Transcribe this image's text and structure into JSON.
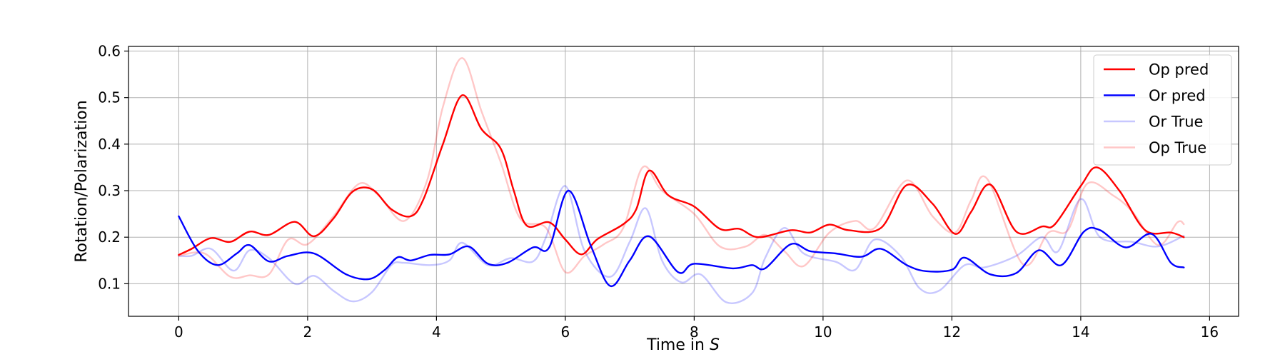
{
  "chart_data": {
    "type": "line",
    "xlabel_prefix": "Time in ",
    "xlabel_var": "S",
    "ylabel": "Rotation/Polarization",
    "xlim": [
      -0.78,
      16.45
    ],
    "ylim": [
      0.03,
      0.61
    ],
    "xticks": [
      0,
      2,
      4,
      6,
      8,
      10,
      12,
      14,
      16
    ],
    "xtick_labels": [
      "0",
      "2",
      "4",
      "6",
      "8",
      "10",
      "12",
      "14",
      "16"
    ],
    "yticks": [
      0.1,
      0.2,
      0.3,
      0.4,
      0.5,
      0.6
    ],
    "ytick_labels": [
      "0.1",
      "0.2",
      "0.3",
      "0.4",
      "0.5",
      "0.6"
    ],
    "grid": true,
    "legend_position": "top-right",
    "series": [
      {
        "name": "Op pred",
        "color": "#ff0000",
        "opacity": 1,
        "points": [
          [
            0,
            0.162
          ],
          [
            0.2,
            0.175
          ],
          [
            0.5,
            0.198
          ],
          [
            0.8,
            0.19
          ],
          [
            1.1,
            0.212
          ],
          [
            1.4,
            0.205
          ],
          [
            1.8,
            0.233
          ],
          [
            2.1,
            0.202
          ],
          [
            2.4,
            0.24
          ],
          [
            2.7,
            0.298
          ],
          [
            3.0,
            0.303
          ],
          [
            3.3,
            0.26
          ],
          [
            3.6,
            0.245
          ],
          [
            3.8,
            0.282
          ],
          [
            4.1,
            0.4
          ],
          [
            4.4,
            0.505
          ],
          [
            4.7,
            0.432
          ],
          [
            5.0,
            0.39
          ],
          [
            5.2,
            0.3
          ],
          [
            5.4,
            0.225
          ],
          [
            5.75,
            0.232
          ],
          [
            6.0,
            0.195
          ],
          [
            6.25,
            0.163
          ],
          [
            6.5,
            0.196
          ],
          [
            6.9,
            0.228
          ],
          [
            7.1,
            0.26
          ],
          [
            7.3,
            0.343
          ],
          [
            7.6,
            0.29
          ],
          [
            8.0,
            0.266
          ],
          [
            8.4,
            0.218
          ],
          [
            8.7,
            0.218
          ],
          [
            9.0,
            0.2
          ],
          [
            9.5,
            0.215
          ],
          [
            9.8,
            0.21
          ],
          [
            10.1,
            0.227
          ],
          [
            10.4,
            0.215
          ],
          [
            10.9,
            0.22
          ],
          [
            11.3,
            0.312
          ],
          [
            11.7,
            0.272
          ],
          [
            12.05,
            0.207
          ],
          [
            12.3,
            0.255
          ],
          [
            12.6,
            0.313
          ],
          [
            13.0,
            0.212
          ],
          [
            13.4,
            0.223
          ],
          [
            13.6,
            0.228
          ],
          [
            14.0,
            0.31
          ],
          [
            14.25,
            0.35
          ],
          [
            14.6,
            0.3
          ],
          [
            15.0,
            0.215
          ],
          [
            15.4,
            0.21
          ],
          [
            15.6,
            0.2
          ]
        ]
      },
      {
        "name": "Or pred",
        "color": "#0000ff",
        "opacity": 1,
        "points": [
          [
            0,
            0.245
          ],
          [
            0.3,
            0.17
          ],
          [
            0.6,
            0.14
          ],
          [
            0.9,
            0.165
          ],
          [
            1.1,
            0.183
          ],
          [
            1.4,
            0.148
          ],
          [
            1.7,
            0.16
          ],
          [
            2.1,
            0.165
          ],
          [
            2.6,
            0.12
          ],
          [
            2.95,
            0.11
          ],
          [
            3.2,
            0.13
          ],
          [
            3.4,
            0.157
          ],
          [
            3.6,
            0.15
          ],
          [
            3.9,
            0.162
          ],
          [
            4.2,
            0.163
          ],
          [
            4.5,
            0.18
          ],
          [
            4.8,
            0.143
          ],
          [
            5.1,
            0.145
          ],
          [
            5.5,
            0.178
          ],
          [
            5.75,
            0.178
          ],
          [
            6.05,
            0.3
          ],
          [
            6.4,
            0.18
          ],
          [
            6.7,
            0.095
          ],
          [
            7.0,
            0.15
          ],
          [
            7.3,
            0.202
          ],
          [
            7.75,
            0.125
          ],
          [
            8.0,
            0.143
          ],
          [
            8.6,
            0.133
          ],
          [
            8.9,
            0.14
          ],
          [
            9.1,
            0.133
          ],
          [
            9.5,
            0.185
          ],
          [
            9.8,
            0.17
          ],
          [
            10.2,
            0.165
          ],
          [
            10.6,
            0.158
          ],
          [
            10.9,
            0.175
          ],
          [
            11.3,
            0.14
          ],
          [
            11.6,
            0.127
          ],
          [
            12.0,
            0.13
          ],
          [
            12.2,
            0.156
          ],
          [
            12.6,
            0.12
          ],
          [
            13.0,
            0.123
          ],
          [
            13.35,
            0.172
          ],
          [
            13.7,
            0.14
          ],
          [
            14.05,
            0.212
          ],
          [
            14.3,
            0.215
          ],
          [
            14.7,
            0.178
          ],
          [
            15.1,
            0.207
          ],
          [
            15.4,
            0.145
          ],
          [
            15.6,
            0.135
          ]
        ]
      },
      {
        "name": "Or True",
        "color": "#0000ff",
        "opacity": 0.22,
        "points": [
          [
            0,
            0.16
          ],
          [
            0.2,
            0.16
          ],
          [
            0.5,
            0.175
          ],
          [
            0.85,
            0.128
          ],
          [
            1.1,
            0.172
          ],
          [
            1.4,
            0.155
          ],
          [
            1.8,
            0.1
          ],
          [
            2.1,
            0.117
          ],
          [
            2.4,
            0.085
          ],
          [
            2.7,
            0.062
          ],
          [
            3.0,
            0.082
          ],
          [
            3.3,
            0.14
          ],
          [
            3.5,
            0.145
          ],
          [
            3.9,
            0.14
          ],
          [
            4.2,
            0.15
          ],
          [
            4.4,
            0.188
          ],
          [
            4.8,
            0.14
          ],
          [
            5.15,
            0.155
          ],
          [
            5.5,
            0.148
          ],
          [
            5.7,
            0.2
          ],
          [
            6.0,
            0.31
          ],
          [
            6.3,
            0.17
          ],
          [
            6.7,
            0.115
          ],
          [
            7.0,
            0.19
          ],
          [
            7.25,
            0.262
          ],
          [
            7.5,
            0.15
          ],
          [
            7.8,
            0.103
          ],
          [
            8.1,
            0.12
          ],
          [
            8.5,
            0.06
          ],
          [
            8.9,
            0.08
          ],
          [
            9.1,
            0.155
          ],
          [
            9.4,
            0.22
          ],
          [
            9.7,
            0.165
          ],
          [
            10.2,
            0.147
          ],
          [
            10.5,
            0.13
          ],
          [
            10.8,
            0.195
          ],
          [
            11.2,
            0.16
          ],
          [
            11.5,
            0.09
          ],
          [
            11.8,
            0.085
          ],
          [
            12.2,
            0.14
          ],
          [
            12.5,
            0.135
          ],
          [
            13.0,
            0.16
          ],
          [
            13.4,
            0.2
          ],
          [
            13.65,
            0.17
          ],
          [
            14.0,
            0.282
          ],
          [
            14.3,
            0.2
          ],
          [
            14.8,
            0.19
          ],
          [
            15.2,
            0.18
          ],
          [
            15.6,
            0.203
          ]
        ]
      },
      {
        "name": "Op True",
        "color": "#ff0000",
        "opacity": 0.22,
        "points": [
          [
            0,
            0.16
          ],
          [
            0.4,
            0.165
          ],
          [
            0.8,
            0.115
          ],
          [
            1.1,
            0.118
          ],
          [
            1.4,
            0.12
          ],
          [
            1.7,
            0.195
          ],
          [
            2.0,
            0.185
          ],
          [
            2.4,
            0.245
          ],
          [
            2.8,
            0.315
          ],
          [
            3.1,
            0.29
          ],
          [
            3.5,
            0.235
          ],
          [
            3.85,
            0.32
          ],
          [
            4.1,
            0.48
          ],
          [
            4.4,
            0.585
          ],
          [
            4.7,
            0.47
          ],
          [
            5.0,
            0.36
          ],
          [
            5.3,
            0.24
          ],
          [
            5.7,
            0.22
          ],
          [
            6.0,
            0.125
          ],
          [
            6.3,
            0.16
          ],
          [
            6.6,
            0.185
          ],
          [
            6.9,
            0.22
          ],
          [
            7.2,
            0.35
          ],
          [
            7.5,
            0.3
          ],
          [
            8.0,
            0.25
          ],
          [
            8.4,
            0.18
          ],
          [
            8.8,
            0.18
          ],
          [
            9.1,
            0.205
          ],
          [
            9.4,
            0.17
          ],
          [
            9.7,
            0.138
          ],
          [
            10.1,
            0.21
          ],
          [
            10.5,
            0.235
          ],
          [
            10.8,
            0.22
          ],
          [
            11.3,
            0.322
          ],
          [
            11.7,
            0.245
          ],
          [
            12.05,
            0.21
          ],
          [
            12.3,
            0.28
          ],
          [
            12.55,
            0.325
          ],
          [
            13.1,
            0.142
          ],
          [
            13.5,
            0.21
          ],
          [
            13.8,
            0.215
          ],
          [
            14.1,
            0.315
          ],
          [
            14.5,
            0.29
          ],
          [
            14.8,
            0.255
          ],
          [
            15.2,
            0.183
          ],
          [
            15.5,
            0.232
          ],
          [
            15.6,
            0.228
          ]
        ]
      }
    ]
  }
}
